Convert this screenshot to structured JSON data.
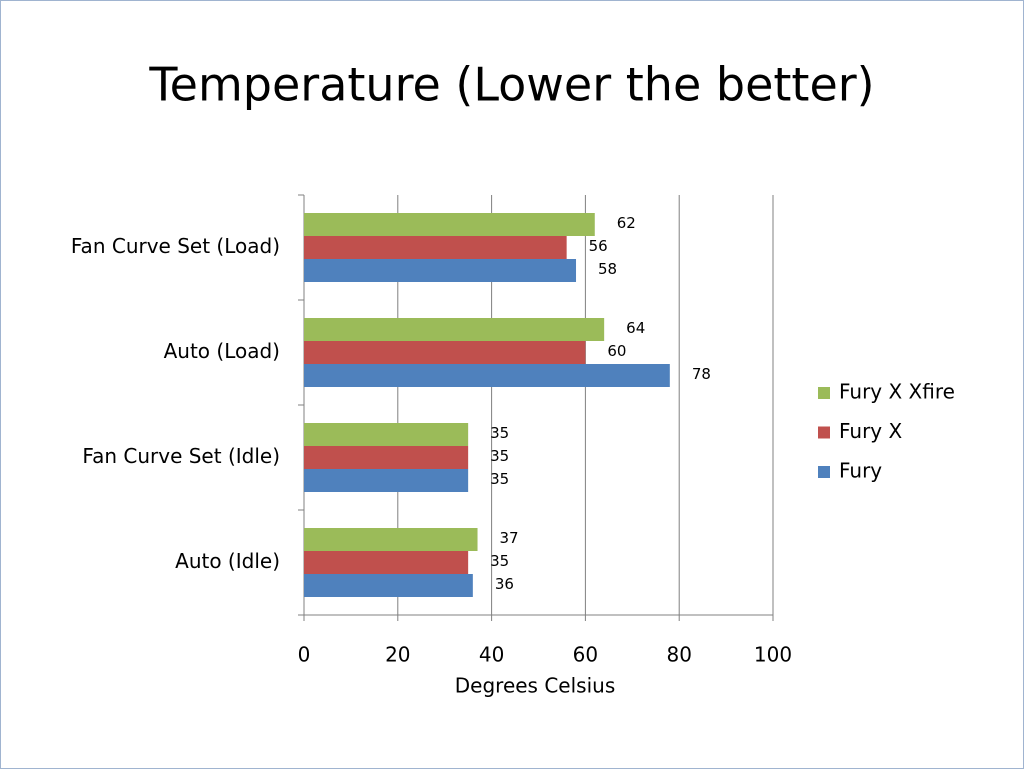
{
  "chart_data": {
    "type": "bar",
    "orientation": "horizontal",
    "title": "Temperature (Lower the better)",
    "x_label": "Degrees Celsius",
    "categories": [
      "Fan Curve Set (Load)",
      "Auto (Load)",
      "Fan Curve Set (Idle)",
      "Auto (Idle)"
    ],
    "series": [
      {
        "name": "Fury X Xfire",
        "color": "#9bbb59",
        "values": [
          62,
          64,
          35,
          37
        ]
      },
      {
        "name": "Fury X",
        "color": "#c0504d",
        "values": [
          56,
          60,
          35,
          35
        ]
      },
      {
        "name": "Fury",
        "color": "#4f81bd",
        "values": [
          58,
          78,
          35,
          36
        ]
      }
    ],
    "xlim": [
      0,
      100
    ],
    "xticks": [
      0,
      20,
      40,
      60,
      80,
      100
    ],
    "grid": true,
    "legend": "right"
  }
}
